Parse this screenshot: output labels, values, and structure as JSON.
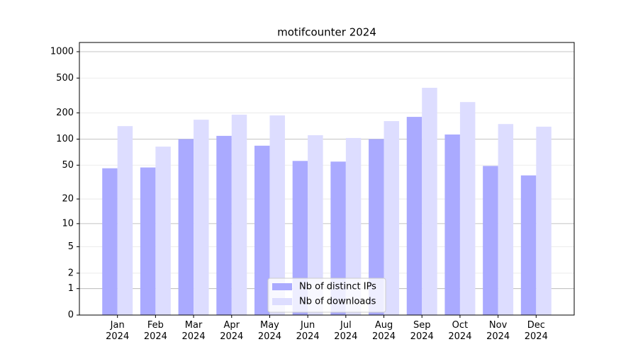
{
  "chart_data": {
    "type": "bar",
    "title": "motifcounter 2024",
    "scale": "log1p",
    "categories": [
      "Jan\n2024",
      "Feb\n2024",
      "Mar\n2024",
      "Apr\n2024",
      "May\n2024",
      "Jun\n2024",
      "Jul\n2024",
      "Aug\n2024",
      "Sep\n2024",
      "Oct\n2024",
      "Nov\n2024",
      "Dec\n2024"
    ],
    "series": [
      {
        "name": "Nb of distinct IPs",
        "color": "#aaaaff",
        "values": [
          46,
          47,
          100,
          109,
          84,
          56,
          55,
          100,
          180,
          113,
          49,
          38
        ]
      },
      {
        "name": "Nb of downloads",
        "color": "#ddddff",
        "values": [
          141,
          82,
          167,
          191,
          187,
          111,
          103,
          161,
          387,
          266,
          149,
          139
        ]
      }
    ],
    "ylim": [
      0,
      1273
    ],
    "yticks": [
      0,
      1,
      2,
      5,
      10,
      20,
      50,
      100,
      200,
      500,
      1000
    ],
    "grid": true,
    "legend": "lower center"
  }
}
